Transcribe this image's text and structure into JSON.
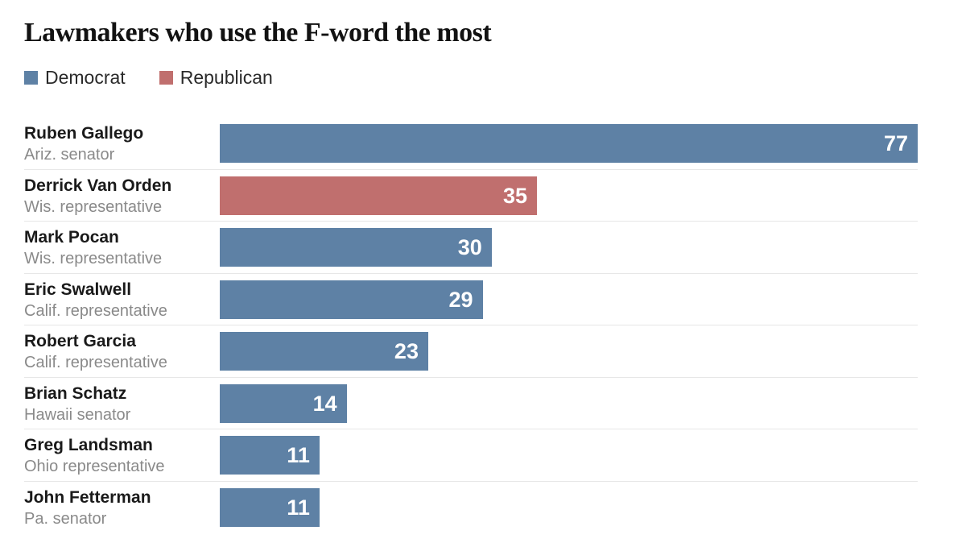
{
  "title": "Lawmakers who use the F-word the most",
  "legend": [
    {
      "label": "Democrat",
      "color": "#5e81a5"
    },
    {
      "label": "Republican",
      "color": "#c06f6e"
    }
  ],
  "colors": {
    "democrat": "#5e81a5",
    "republican": "#c06f6e",
    "value_text": "#ffffff",
    "name_text": "#1a1a1a",
    "role_text": "#8a8a8a",
    "separator": "#e7e7e7"
  },
  "chart_data": {
    "type": "bar",
    "orientation": "horizontal",
    "title": "Lawmakers who use the F-word the most",
    "xlabel": "",
    "ylabel": "",
    "xlim": [
      0,
      77
    ],
    "grid": false,
    "legend_position": "top-left",
    "legend": [
      "Democrat",
      "Republican"
    ],
    "categories": [
      "Ruben Gallego",
      "Derrick Van Orden",
      "Mark Pocan",
      "Eric Swalwell",
      "Robert Garcia",
      "Brian Schatz",
      "Greg Landsman",
      "John Fetterman"
    ],
    "values": [
      77,
      35,
      30,
      29,
      23,
      14,
      11,
      11
    ],
    "rows": [
      {
        "name": "Ruben Gallego",
        "role": "Ariz. senator",
        "value": 77,
        "party": "democrat"
      },
      {
        "name": "Derrick Van Orden",
        "role": "Wis. representative",
        "value": 35,
        "party": "republican"
      },
      {
        "name": "Mark Pocan",
        "role": "Wis. representative",
        "value": 30,
        "party": "democrat"
      },
      {
        "name": "Eric Swalwell",
        "role": "Calif. representative",
        "value": 29,
        "party": "democrat"
      },
      {
        "name": "Robert Garcia",
        "role": "Calif. representative",
        "value": 23,
        "party": "democrat"
      },
      {
        "name": "Brian Schatz",
        "role": "Hawaii senator",
        "value": 14,
        "party": "democrat"
      },
      {
        "name": "Greg Landsman",
        "role": "Ohio representative",
        "value": 11,
        "party": "democrat"
      },
      {
        "name": "John Fetterman",
        "role": "Pa. senator",
        "value": 11,
        "party": "democrat"
      }
    ]
  }
}
